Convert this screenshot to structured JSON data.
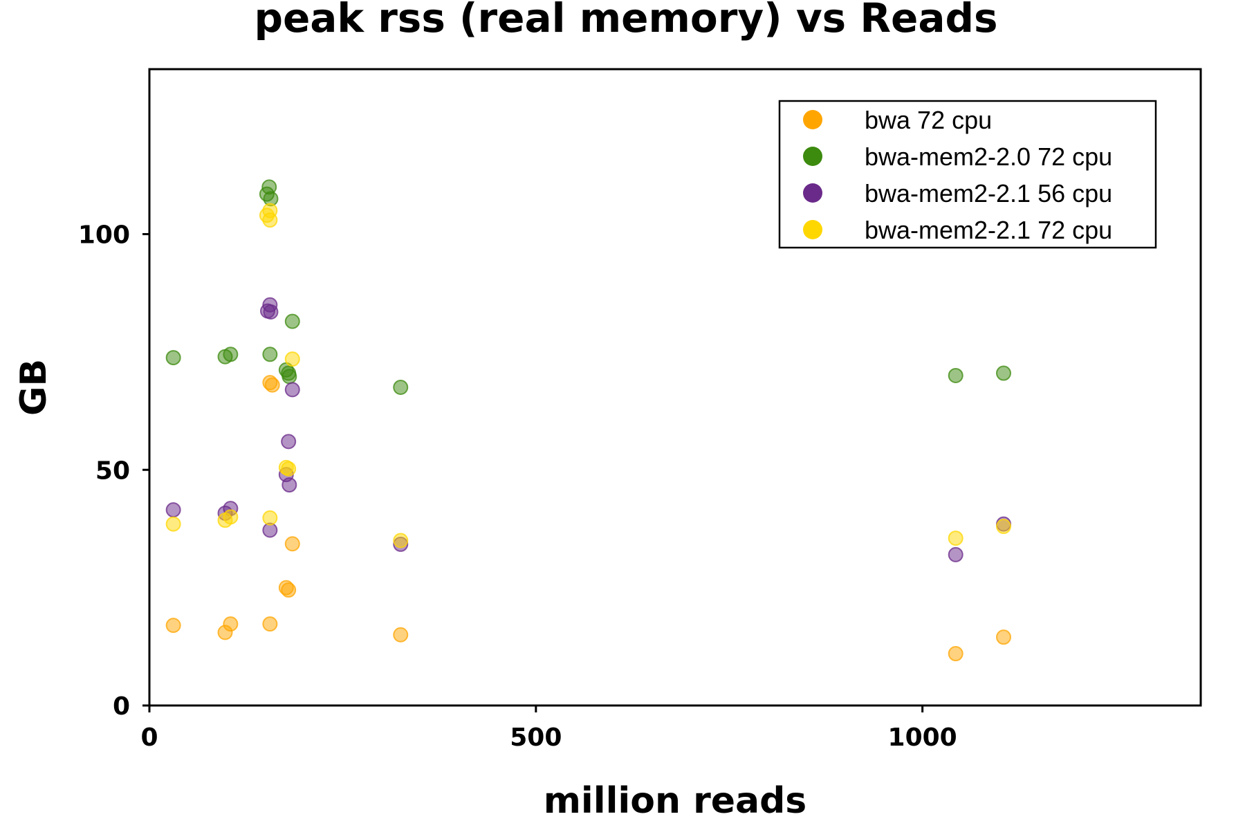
{
  "chart_data": {
    "type": "scatter",
    "title": "peak rss (real memory) vs Reads",
    "xlabel": "million reads",
    "ylabel": "GB",
    "xlim": [
      0,
      1360
    ],
    "ylim": [
      0,
      135
    ],
    "xticks": [
      0,
      500,
      1000
    ],
    "yticks": [
      0,
      50,
      100
    ],
    "grid": false,
    "legend_position": "top-right",
    "series": [
      {
        "name": "bwa 72 cpu",
        "color": "#FFA500",
        "points": [
          [
            31,
            17
          ],
          [
            98,
            15.5
          ],
          [
            105,
            17.3
          ],
          [
            156,
            17.3
          ],
          [
            156,
            68.5
          ],
          [
            159,
            68
          ],
          [
            185,
            34.3
          ],
          [
            177,
            25
          ],
          [
            180,
            24.5
          ],
          [
            325,
            15
          ],
          [
            1043,
            11
          ],
          [
            1105,
            14.5
          ]
        ]
      },
      {
        "name": "bwa-mem2-2.0 72 cpu",
        "color": "#3C8A0E",
        "points": [
          [
            31,
            73.8
          ],
          [
            98,
            74
          ],
          [
            105,
            74.5
          ],
          [
            155,
            110
          ],
          [
            152,
            108.5
          ],
          [
            157,
            107.5
          ],
          [
            156,
            74.5
          ],
          [
            177,
            71.2
          ],
          [
            180,
            70.5
          ],
          [
            181,
            69.8
          ],
          [
            185,
            81.5
          ],
          [
            325,
            67.5
          ],
          [
            1043,
            70
          ],
          [
            1105,
            70.5
          ]
        ]
      },
      {
        "name": "bwa-mem2-2.1 56 cpu",
        "color": "#6A2A8A",
        "points": [
          [
            31,
            41.5
          ],
          [
            98,
            40.8
          ],
          [
            105,
            41.8
          ],
          [
            156,
            85
          ],
          [
            153,
            83.7
          ],
          [
            157,
            83.5
          ],
          [
            156,
            37.2
          ],
          [
            185,
            67
          ],
          [
            180,
            56
          ],
          [
            177,
            49
          ],
          [
            181,
            46.8
          ],
          [
            325,
            34.2
          ],
          [
            1043,
            32
          ],
          [
            1105,
            38.5
          ]
        ]
      },
      {
        "name": "bwa-mem2-2.1 72 cpu",
        "color": "#FFD700",
        "points": [
          [
            31,
            38.5
          ],
          [
            98,
            39.3
          ],
          [
            105,
            40
          ],
          [
            156,
            105
          ],
          [
            152,
            104
          ],
          [
            156,
            103
          ],
          [
            156,
            39.8
          ],
          [
            185,
            73.5
          ],
          [
            177,
            50.5
          ],
          [
            180,
            50.2
          ],
          [
            325,
            35
          ],
          [
            1043,
            35.5
          ],
          [
            1105,
            38
          ]
        ]
      }
    ]
  }
}
